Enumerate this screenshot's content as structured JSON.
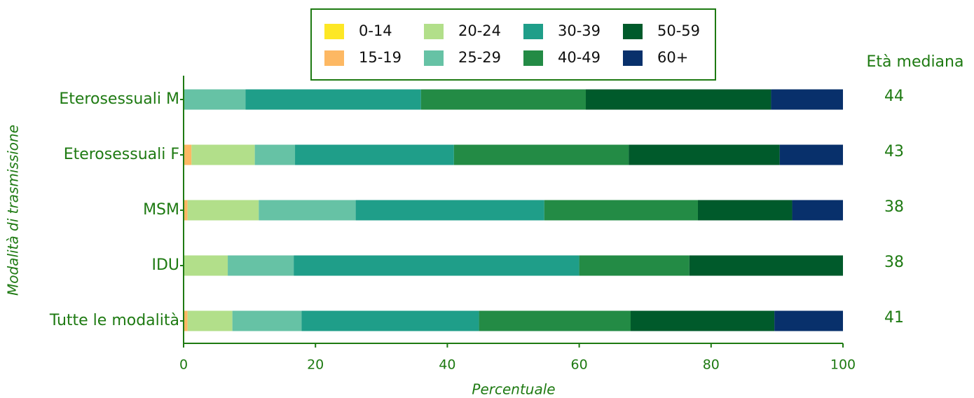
{
  "chart_data": {
    "type": "stacked_barh",
    "categories": [
      "Eterosessuali M",
      "Eterosessuali F",
      "MSM",
      "IDU",
      "Tutte le modalità"
    ],
    "series": [
      {
        "name": "0-14",
        "color": "#fde725",
        "values": [
          0,
          0,
          0,
          0,
          0
        ]
      },
      {
        "name": "15-19",
        "color": "#fdb863",
        "values": [
          0,
          1.2,
          0.6,
          0,
          0.6
        ]
      },
      {
        "name": "20-24",
        "color": "#b2df8a",
        "values": [
          0,
          9.6,
          10.8,
          6.7,
          6.8
        ]
      },
      {
        "name": "25-29",
        "color": "#66c2a5",
        "values": [
          9.4,
          6.1,
          14.7,
          10.0,
          10.5
        ]
      },
      {
        "name": "30-39",
        "color": "#1f9e89",
        "values": [
          26.6,
          24.1,
          28.6,
          43.3,
          26.9
        ]
      },
      {
        "name": "40-49",
        "color": "#238b45",
        "values": [
          25.0,
          26.5,
          23.3,
          16.7,
          23.0
        ]
      },
      {
        "name": "50-59",
        "color": "#005a2b",
        "values": [
          28.1,
          22.9,
          14.3,
          23.3,
          21.8
        ]
      },
      {
        "name": "60+",
        "color": "#08306b",
        "values": [
          10.9,
          9.6,
          7.7,
          0,
          10.4
        ]
      }
    ],
    "xlim": [
      0,
      100
    ],
    "xticks": [
      0,
      20,
      40,
      60,
      80,
      100
    ],
    "x_label": "Percentuale",
    "y_label": "Modalità di trasmissione",
    "median_age": {
      "label": "Età mediana",
      "values": [
        44,
        43,
        38,
        38,
        41
      ]
    }
  }
}
